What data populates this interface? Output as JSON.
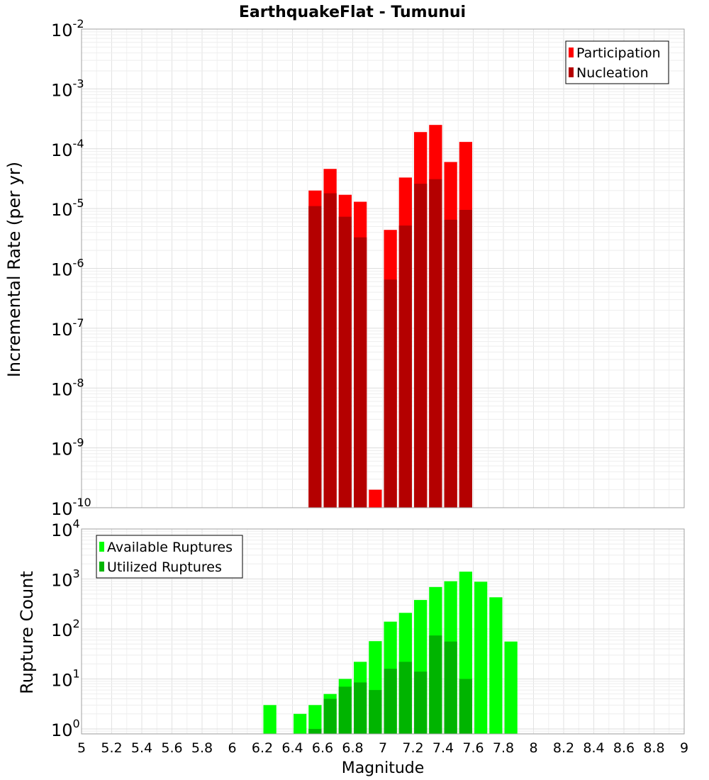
{
  "title": "EarthquakeFlat - Tumunui",
  "xlabel": "Magnitude",
  "x_ticks": [
    "5",
    "5.2",
    "5.4",
    "5.6",
    "5.8",
    "6",
    "6.2",
    "6.4",
    "6.6",
    "6.8",
    "7",
    "7.2",
    "7.4",
    "7.6",
    "7.8",
    "8",
    "8.2",
    "8.4",
    "8.6",
    "8.8",
    "9"
  ],
  "chart_data": [
    {
      "type": "bar",
      "scale": "log",
      "ylabel": "Incremental Rate (per yr)",
      "xlim": [
        5,
        9
      ],
      "ylim_exponents": [
        -10,
        -2
      ],
      "y_ticks": [
        {
          "base": "10",
          "exp": "-10"
        },
        {
          "base": "10",
          "exp": "-9"
        },
        {
          "base": "10",
          "exp": "-8"
        },
        {
          "base": "10",
          "exp": "-7"
        },
        {
          "base": "10",
          "exp": "-6"
        },
        {
          "base": "10",
          "exp": "-5"
        },
        {
          "base": "10",
          "exp": "-4"
        },
        {
          "base": "10",
          "exp": "-3"
        },
        {
          "base": "10",
          "exp": "-2"
        }
      ],
      "legend_position": "top-right",
      "bin_width": 0.1,
      "grid": true,
      "x": [
        6.55,
        6.65,
        6.75,
        6.85,
        6.95,
        7.05,
        7.15,
        7.25,
        7.35,
        7.45,
        7.55
      ],
      "series": [
        {
          "name": "Participation",
          "color": "#ff0000",
          "values": [
            2e-05,
            4.6e-05,
            1.7e-05,
            1.3e-05,
            2e-10,
            4.4e-06,
            3.3e-05,
            0.00019,
            0.00025,
            6e-05,
            0.00013
          ]
        },
        {
          "name": "Nucleation",
          "color": "#b40000",
          "values": [
            1.1e-05,
            1.8e-05,
            7.3e-06,
            3.3e-06,
            null,
            6.5e-07,
            5.2e-06,
            2.6e-05,
            3.1e-05,
            6.5e-06,
            9.5e-06
          ]
        }
      ]
    },
    {
      "type": "bar",
      "scale": "log",
      "ylabel": "Rupture Count",
      "xlim": [
        5,
        9
      ],
      "ylim_exponents": [
        -0.1,
        4
      ],
      "y_ticks": [
        {
          "base": "10",
          "exp": "0"
        },
        {
          "base": "10",
          "exp": "1"
        },
        {
          "base": "10",
          "exp": "2"
        },
        {
          "base": "10",
          "exp": "3"
        },
        {
          "base": "10",
          "exp": "4"
        }
      ],
      "legend_position": "top-left",
      "bin_width": 0.1,
      "grid": true,
      "x": [
        6.25,
        6.45,
        6.55,
        6.65,
        6.75,
        6.85,
        6.95,
        7.05,
        7.15,
        7.25,
        7.35,
        7.45,
        7.55,
        7.65,
        7.75,
        7.85
      ],
      "series": [
        {
          "name": "Available Ruptures",
          "color": "#00ff00",
          "values": [
            3,
            2,
            3,
            5,
            10,
            22,
            57,
            140,
            210,
            380,
            690,
            900,
            1400,
            880,
            430,
            56
          ]
        },
        {
          "name": "Utilized Ruptures",
          "color": "#00b400",
          "values": [
            null,
            null,
            1,
            4,
            7,
            8.5,
            6,
            16,
            22,
            14,
            74,
            56,
            10,
            null,
            null,
            null
          ]
        }
      ]
    }
  ]
}
